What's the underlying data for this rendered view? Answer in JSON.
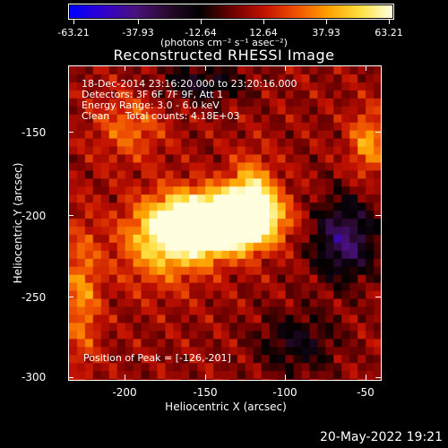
{
  "colorbar": {
    "tick_labels": [
      "-63.21",
      "-37.93",
      "-12.64",
      "12.64",
      "37.93",
      "63.21"
    ],
    "units_label": "(photons cm⁻² s⁻¹ asec⁻²)",
    "colors": [
      "#0000ff",
      "#3000d0",
      "#4a1080",
      "#2a0a30",
      "#000000",
      "#6a0000",
      "#c01000",
      "#f05000",
      "#ffa000",
      "#ffe040",
      "#ffffe0"
    ]
  },
  "title": "Reconstructed RHESSI Image",
  "info": {
    "time_range": "18-Dec-2014 23:16:20.000 to 23:20:16.000",
    "detectors": "Detectors: 3F 6F 7F 9F, Att 1",
    "energy_range": "Energy Range: 3.0 - 6.0 keV",
    "clean_counts": "Clean     Total counts: 4.18E+03",
    "peak_position": "Position of Peak = [-126,-201]"
  },
  "axes": {
    "xlabel": "Heliocentric X (arcsec)",
    "ylabel": "Heliocentric Y (arcsec)",
    "xticks": [
      "-200",
      "-150",
      "-100",
      "-50"
    ],
    "yticks": [
      "-150",
      "-200",
      "-250",
      "-300"
    ]
  },
  "footer": {
    "date": "20-May-2022 19:21"
  },
  "chart_data": {
    "type": "heatmap",
    "title": "Reconstructed RHESSI Image",
    "xlabel": "Heliocentric X (arcsec)",
    "ylabel": "Heliocentric Y (arcsec)",
    "xlim": [
      -233,
      -37
    ],
    "ylim": [
      -303,
      -107
    ],
    "zlim": [
      -63.21,
      63.21
    ],
    "peak": [
      -126,
      -201
    ],
    "sources": [
      {
        "x": -126,
        "y": -201,
        "amp": 63.2,
        "sigma_x": 18,
        "sigma_y": 11
      },
      {
        "x": -140,
        "y": -208,
        "amp": 50,
        "sigma_x": 22,
        "sigma_y": 12
      },
      {
        "x": -160,
        "y": -205,
        "amp": 44,
        "sigma_x": 18,
        "sigma_y": 14
      },
      {
        "x": -118,
        "y": -188,
        "amp": 42,
        "sigma_x": 10,
        "sigma_y": 16
      },
      {
        "x": -175,
        "y": -220,
        "amp": 30,
        "sigma_x": 20,
        "sigma_y": 18
      },
      {
        "x": -45,
        "y": -155,
        "amp": 32,
        "sigma_x": 8,
        "sigma_y": 14
      },
      {
        "x": -225,
        "y": -250,
        "amp": 28,
        "sigma_x": 8,
        "sigma_y": 30
      },
      {
        "x": -195,
        "y": -145,
        "amp": 22,
        "sigma_x": 15,
        "sigma_y": 15
      },
      {
        "x": -60,
        "y": -215,
        "amp": -40,
        "sigma_x": 14,
        "sigma_y": 18
      },
      {
        "x": -150,
        "y": -118,
        "amp": -25,
        "sigma_x": 20,
        "sigma_y": 8
      },
      {
        "x": -90,
        "y": -280,
        "amp": -22,
        "sigma_x": 18,
        "sigma_y": 14
      }
    ]
  }
}
